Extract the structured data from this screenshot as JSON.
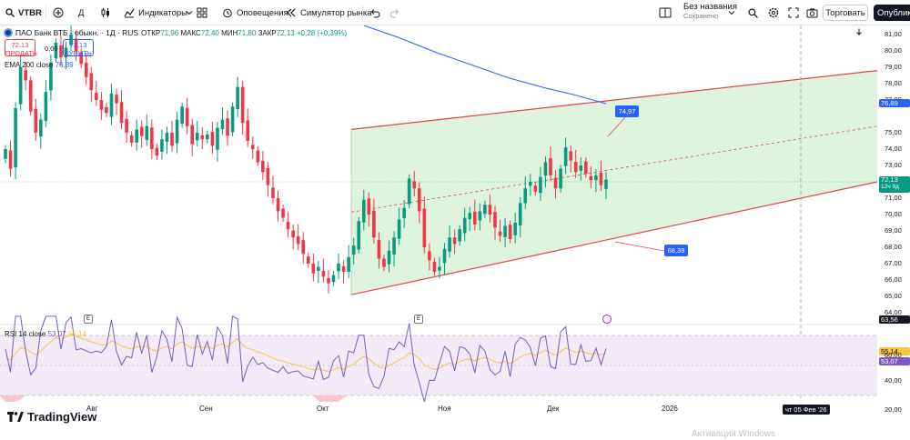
{
  "toolbar": {
    "symbol": "VTBR",
    "interval": "Д",
    "indicators_label": "Индикаторы",
    "alerts_label": "Оповещения",
    "replay_label": "Симулятор рынка",
    "layout_title": "Без названия",
    "layout_status": "Сохранено",
    "trade_label": "Торговать",
    "publish_label": "Опубликовать"
  },
  "legend": {
    "instrument": "ПАО Банк ВТБ - обыкн. · 1Д · RUS",
    "open_label": "ОТКР",
    "open": "71,96",
    "high_label": "МАКС",
    "high": "72,40",
    "low_label": "МИН",
    "low": "71,80",
    "close_label": "ЗАКР",
    "close": "72,13",
    "change": "+0,28 (+0,39%)"
  },
  "trade": {
    "sell_price": "72,13",
    "sell_label": "ПРОДАТЬ",
    "spread": "0,00",
    "buy_price": "72,13",
    "buy_label": "КУПИТЬ"
  },
  "ema": {
    "label": "EMA 200 close",
    "value": "76,89"
  },
  "rsi": {
    "label": "RSI 14 close",
    "value": "53,07",
    "ma_value": "55,14"
  },
  "annotations": {
    "upper": "74,97",
    "lower": "68,39"
  },
  "price_axis": {
    "ticks": [
      "81,00",
      "80,00",
      "79,00",
      "78,00",
      "77,00",
      "75,00",
      "74,00",
      "73,00",
      "71,00",
      "70,00",
      "69,00",
      "68,00",
      "67,00",
      "66,00",
      "65,00",
      "64,00"
    ],
    "ema_badge": "76,89",
    "price_badge": "72,13",
    "countdown": "12ч 9д",
    "pane_value": "63,56",
    "rsi_ma_badge": "55,14",
    "rsi_badge": "53,07",
    "rsi_ticks": [
      "60,00",
      "40,00",
      "20,00"
    ]
  },
  "time_axis": {
    "labels": [
      "Авг",
      "Сен",
      "Окт",
      "Ноя",
      "Дек",
      "2026"
    ],
    "crosshair_date": "чт 05 Фев '26"
  },
  "brand": "TradingView",
  "watermark": "Активация Windows",
  "colors": {
    "up": "#089981",
    "down": "#f23645",
    "ema": "#2962ff",
    "rsi": "#7e57c2",
    "rsi_ma": "#f5c542",
    "channel": "#e5434b",
    "channel_fill": "#d9f2d9"
  },
  "chart_data": {
    "type": "candlestick",
    "title": "ПАО Банк ВТБ - обыкн. · 1Д · RUS",
    "ylim": [
      64,
      81.5
    ],
    "candles": [
      [
        75.0,
        74.7,
        72.0
      ],
      [
        72.6,
        73.6,
        75.5
      ],
      [
        77.4,
        79.3,
        78.0
      ],
      [
        78.2,
        78.6,
        75.0
      ],
      [
        74.0,
        77.2,
        76.3
      ],
      [
        76.2,
        74.9,
        73.0
      ],
      [
        75.9,
        76.2,
        76.1
      ],
      [
        75.6,
        78.9,
        79.3
      ],
      [
        79.4,
        80.5,
        79.9
      ],
      [
        78.8,
        79.9,
        78.2
      ],
      [
        79.3,
        80.2,
        79.2
      ],
      [
        79.2,
        79.0,
        81.4
      ],
      [
        81.8,
        79.0,
        80.7
      ],
      [
        80.4,
        78.7,
        79.7
      ],
      [
        80.8,
        77.3,
        78.6
      ],
      [
        78.9,
        77.4,
        77.2
      ],
      [
        76.1,
        77.3,
        75.8
      ],
      [
        76.4,
        76.0,
        76.7
      ],
      [
        77.6,
        74.3,
        77.5
      ],
      [
        78.0,
        76.0,
        75.6
      ],
      [
        74.7,
        75.6,
        76.8
      ],
      [
        76.5,
        73.5,
        74.1
      ],
      [
        75.2,
        75.3,
        75.9
      ],
      [
        76.2,
        74.7,
        74.6
      ],
      [
        75.4,
        74.8,
        75.3
      ],
      [
        75.1,
        76.4,
        76.0
      ],
      [
        77.6,
        74.5,
        73.5
      ],
      [
        74.1,
        72.9,
        73.2
      ],
      [
        72.1,
        73.9,
        72.3
      ],
      [
        72.7,
        70.7,
        69.2
      ],
      [
        71.2,
        71.2,
        70.3
      ],
      [
        69.5,
        69.4,
        69.1
      ],
      [
        70.5,
        68.4,
        69.6
      ],
      [
        68.5,
        68.2,
        68.2
      ],
      [
        66.4,
        66.3,
        67.3
      ],
      [
        67.6,
        66.0,
        68.1
      ],
      [
        68.8,
        66.4,
        67.2
      ],
      [
        67.6,
        66.2,
        67.8
      ],
      [
        67.0,
        67.1,
        68.2
      ],
      [
        68.1,
        67.6,
        71.4
      ],
      [
        71.6,
        71.8,
        72.2
      ],
      [
        71.5,
        70.6,
        67.6
      ],
      [
        67.9,
        66.6,
        68.6
      ],
      [
        68.6,
        67.6,
        66.5
      ],
      [
        67.6,
        68.4,
        69.6
      ],
      [
        70.7,
        70.3,
        69.9
      ],
      [
        69.4,
        70.6,
        71.1
      ],
      [
        70.5,
        68.5,
        69.3
      ],
      [
        69.2,
        68.9,
        70.6
      ],
      [
        72.1,
        71.4,
        71.7
      ],
      [
        71.0,
        72.0,
        73.4
      ],
      [
        72.3,
        71.8,
        72.6
      ],
      [
        72.7,
        72.8,
        72.6
      ],
      [
        72.4,
        72.13,
        72.13
      ]
    ],
    "ema200": [
      82,
      81.5,
      80.5,
      79.5,
      78.5,
      77.9,
      77.4,
      76.9
    ],
    "channel": {
      "upper": [
        "65.4→78.7"
      ],
      "lower": [
        "64.9→72.0"
      ]
    },
    "rsi": {
      "ylim": [
        20,
        80
      ],
      "bands": [
        35,
        60
      ]
    }
  }
}
